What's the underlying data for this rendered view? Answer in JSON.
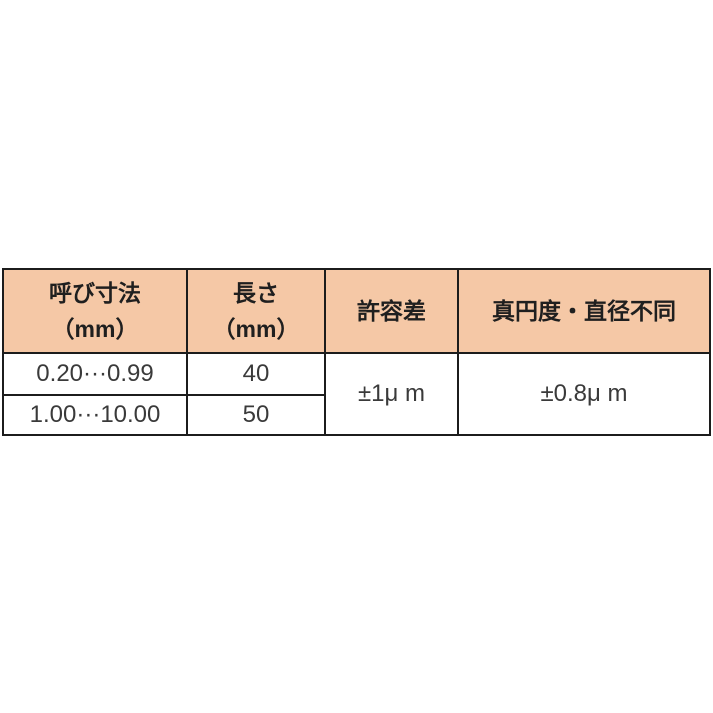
{
  "table": {
    "title": "pin-gauge-tolerance-table",
    "headers": {
      "nominal_size_line1": "呼び寸法",
      "nominal_size_line2": "（mm）",
      "length_line1": "長さ",
      "length_line2": "（mm）",
      "tolerance": "許容差",
      "roundness": "真円度・直径不同"
    },
    "rows": [
      {
        "nominal_size": "0.20···0.99",
        "length": "40"
      },
      {
        "nominal_size": "1.00···10.00",
        "length": "50"
      }
    ],
    "tolerance_value": "±1μ m",
    "roundness_value": "±0.8μ m"
  },
  "colors": {
    "page_bg": "#ffffff",
    "header_bg": "#f5c8a6",
    "border": "#1c1c1c",
    "header_text": "#1f1f1f",
    "body_text": "#3a3a3a"
  }
}
